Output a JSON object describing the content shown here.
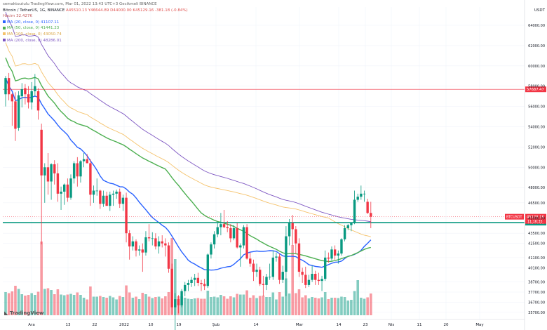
{
  "header": {
    "credit": "semaktoutulu TradingView.com, Mar 01, 2022 13:43 UTC+3 Gecikmeli BINANCE",
    "title": "Bitcoin / TetherUS, 1G, BINANCE",
    "ohlc": "A45510.13  Y46644.89  D44000.00  K45129.16  -381.18 (-0.84%)",
    "volume_label": "Hacim  32.427K",
    "ma_lines": [
      {
        "label": "MA (20, close, 0)  41107.11",
        "color": "#2962ff"
      },
      {
        "label": "MA (50, close, 0)  41441.23",
        "color": "#4caf50"
      },
      {
        "label": "MA (100, close, 0)  43050.74",
        "color": "#f5c26b"
      },
      {
        "label": "MA (200, close, 0)  48286.01",
        "color": "#7e57c2"
      }
    ],
    "currency": "USDT",
    "brand": "TradingView"
  },
  "chart_data": {
    "type": "candlestick",
    "title": "Bitcoin / TetherUS, 1G, BINANCE",
    "x_labels": [
      "Ara",
      "13",
      "22",
      "2022",
      "10",
      "19",
      "Şub",
      "14",
      "Mar",
      "14",
      "23",
      "Nis",
      "11",
      "20",
      "May"
    ],
    "y_ticks": [
      64000,
      62000,
      60000,
      58000,
      56000,
      54000,
      52000,
      50000,
      48000,
      46500,
      45000,
      43500,
      42500,
      41100,
      40100,
      38700,
      37700,
      36700,
      35700
    ],
    "y_range": [
      35000,
      65800
    ],
    "horizontal_lines": [
      {
        "label": "57687.47",
        "value": 57687.47,
        "color": "#f23645"
      },
      {
        "label": "44544.86",
        "value": 44544.86,
        "color": "#089981"
      }
    ],
    "last_price": {
      "label": "45129.16",
      "countdown": "11:16:35",
      "value": 45129.16,
      "symbol": "BTCUSDT"
    },
    "candles": [
      [
        57200,
        59000,
        56000,
        58800
      ],
      [
        58800,
        59300,
        56600,
        57200
      ],
      [
        57200,
        57300,
        54100,
        56500
      ],
      [
        56500,
        57400,
        52600,
        53800
      ],
      [
        53900,
        57500,
        53600,
        57100
      ],
      [
        57000,
        58300,
        55900,
        57700
      ],
      [
        57800,
        58200,
        56200,
        57200
      ],
      [
        57200,
        58000,
        55800,
        56400
      ],
      [
        56400,
        58400,
        55700,
        57500
      ],
      [
        57500,
        59200,
        57000,
        58000
      ],
      [
        57500,
        57800,
        54700,
        55600
      ],
      [
        53700,
        54300,
        42400,
        49200
      ],
      [
        49200,
        50400,
        46500,
        50000
      ],
      [
        50000,
        51400,
        47300,
        48600
      ],
      [
        48600,
        50400,
        46800,
        50300
      ],
      [
        50300,
        50700,
        48300,
        49400
      ],
      [
        49400,
        50400,
        46600,
        47400
      ],
      [
        47400,
        48100,
        45800,
        47600
      ],
      [
        47600,
        48400,
        46300,
        48300
      ],
      [
        48300,
        48900,
        46600,
        47000
      ],
      [
        47000,
        49300,
        46800,
        48900
      ],
      [
        48900,
        50600,
        48400,
        50400
      ],
      [
        50400,
        51000,
        48100,
        49100
      ],
      [
        49100,
        50700,
        48500,
        50600
      ],
      [
        50600,
        51400,
        50000,
        50800
      ],
      [
        50800,
        51300,
        50400,
        50400
      ],
      [
        50400,
        50800,
        46200,
        47300
      ],
      [
        47300,
        48200,
        46500,
        47700
      ],
      [
        47700,
        48900,
        47200,
        47700
      ],
      [
        47700,
        47800,
        45900,
        46400
      ],
      [
        46400,
        47700,
        46100,
        47200
      ],
      [
        47200,
        47600,
        46200,
        46200
      ],
      [
        46200,
        47600,
        45700,
        47300
      ],
      [
        47300,
        47700,
        46200,
        47400
      ],
      [
        47400,
        47800,
        46900,
        47600
      ],
      [
        47600,
        47900,
        46000,
        46400
      ],
      [
        46400,
        47300,
        45700,
        47000
      ],
      [
        47000,
        47500,
        42600,
        43500
      ],
      [
        43500,
        43800,
        40900,
        42200
      ],
      [
        42200,
        43200,
        41800,
        42700
      ],
      [
        42700,
        42900,
        41200,
        41800
      ],
      [
        41800,
        42300,
        41300,
        41900
      ],
      [
        41900,
        42500,
        39700,
        41600
      ],
      [
        41600,
        43700,
        41300,
        43100
      ],
      [
        43100,
        44400,
        42700,
        43000
      ],
      [
        43000,
        43600,
        42300,
        43000
      ],
      [
        43000,
        43500,
        41900,
        42200
      ],
      [
        42200,
        43200,
        41500,
        42700
      ],
      [
        42700,
        43300,
        42100,
        42500
      ],
      [
        42500,
        43000,
        41200,
        42300
      ],
      [
        42300,
        42600,
        39600,
        40000
      ],
      [
        40000,
        40500,
        35500,
        36200
      ],
      [
        36200,
        37600,
        33000,
        37000
      ],
      [
        37000,
        37400,
        35600,
        36400
      ],
      [
        36400,
        38000,
        36200,
        37800
      ],
      [
        37800,
        38700,
        37300,
        38400
      ],
      [
        38400,
        38900,
        37800,
        38600
      ],
      [
        38600,
        39200,
        38200,
        38900
      ],
      [
        38900,
        39500,
        38300,
        39100
      ],
      [
        39100,
        39600,
        38300,
        38600
      ],
      [
        38600,
        38900,
        37800,
        38500
      ],
      [
        38500,
        39000,
        37900,
        38300
      ],
      [
        38300,
        41500,
        38100,
        41400
      ],
      [
        41400,
        42600,
        41000,
        42400
      ],
      [
        42400,
        43700,
        42000,
        43400
      ],
      [
        43400,
        44600,
        43100,
        44100
      ],
      [
        44100,
        45500,
        43300,
        44400
      ],
      [
        44400,
        45800,
        44000,
        44100
      ],
      [
        44100,
        44700,
        43600,
        44000
      ],
      [
        44000,
        44400,
        42600,
        43000
      ],
      [
        43000,
        44300,
        42800,
        44000
      ],
      [
        44000,
        44500,
        42000,
        42100
      ],
      [
        42100,
        42500,
        40200,
        42300
      ],
      [
        42300,
        44300,
        42000,
        44100
      ],
      [
        44100,
        44400,
        40900,
        41000
      ],
      [
        41000,
        41600,
        40200,
        40500
      ],
      [
        40500,
        40900,
        38800,
        39700
      ],
      [
        39700,
        40500,
        39200,
        39900
      ],
      [
        39900,
        40200,
        38300,
        38500
      ],
      [
        38500,
        39300,
        37300,
        38400
      ],
      [
        38400,
        39500,
        37900,
        39200
      ],
      [
        39200,
        40500,
        38900,
        39200
      ],
      [
        39200,
        41800,
        38900,
        41100
      ],
      [
        41100,
        41600,
        40700,
        41200
      ],
      [
        41200,
        41500,
        38500,
        38900
      ],
      [
        38900,
        40300,
        38600,
        39700
      ],
      [
        39700,
        44200,
        37300,
        43200
      ],
      [
        43200,
        44900,
        42300,
        44500
      ],
      [
        44500,
        45300,
        42300,
        43900
      ],
      [
        43900,
        44200,
        41500,
        42500
      ],
      [
        42500,
        43000,
        39200,
        39700
      ],
      [
        39700,
        40100,
        38600,
        39400
      ],
      [
        39400,
        40200,
        38100,
        38400
      ],
      [
        38400,
        39400,
        38200,
        38900
      ],
      [
        38900,
        40300,
        38700,
        39500
      ],
      [
        39500,
        39800,
        38400,
        38900
      ],
      [
        38900,
        39600,
        38400,
        38800
      ],
      [
        38800,
        39300,
        37800,
        39000
      ],
      [
        39000,
        41800,
        38800,
        41100
      ],
      [
        41100,
        41600,
        40600,
        41000
      ],
      [
        41000,
        42200,
        40800,
        41900
      ],
      [
        41900,
        42300,
        40900,
        41300
      ],
      [
        41300,
        41800,
        40500,
        41500
      ],
      [
        41500,
        43000,
        41300,
        42900
      ],
      [
        42900,
        44300,
        42700,
        44000
      ],
      [
        44000,
        44400,
        43800,
        44300
      ],
      [
        44300,
        44500,
        43700,
        44500
      ],
      [
        44500,
        47700,
        44400,
        46800
      ],
      [
        46800,
        47400,
        46600,
        47100
      ],
      [
        47100,
        48200,
        46800,
        47400
      ],
      [
        47400,
        47700,
        46600,
        47400
      ],
      [
        46600,
        46900,
        45400,
        45500
      ],
      [
        45500,
        46600,
        44000,
        45129
      ]
    ],
    "volume_note": "Hacim bars shown below price panel"
  }
}
